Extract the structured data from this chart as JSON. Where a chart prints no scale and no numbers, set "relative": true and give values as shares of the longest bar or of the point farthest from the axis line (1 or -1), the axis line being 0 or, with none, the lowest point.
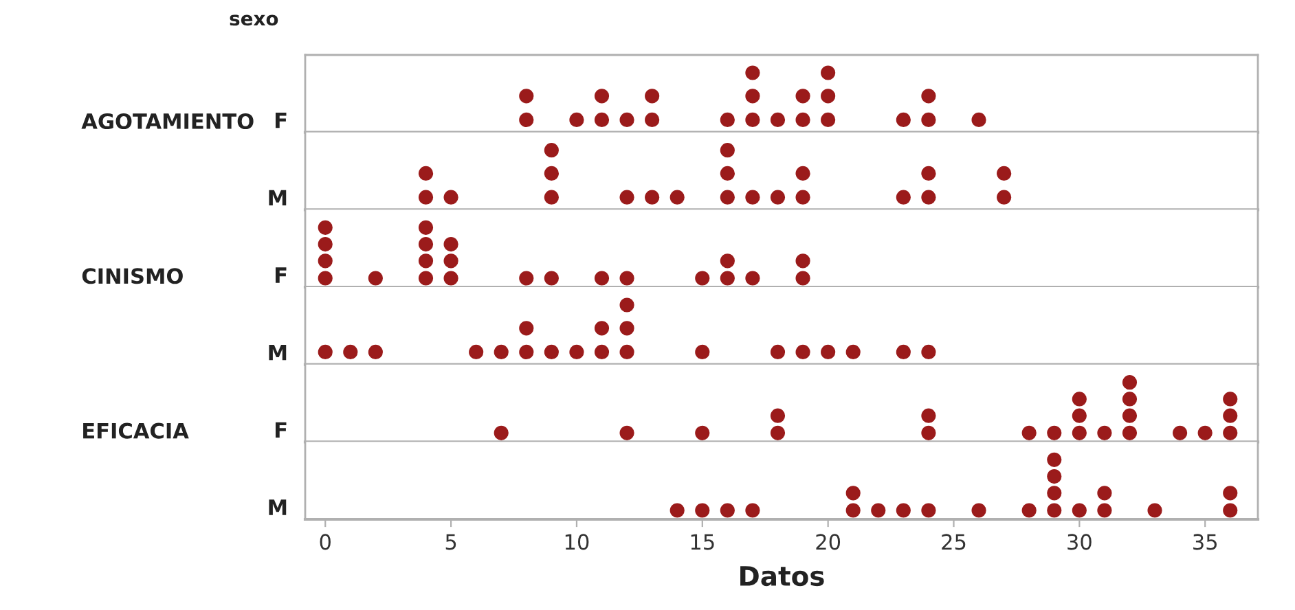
{
  "chart_data": [
    {
      "type": "scatter",
      "relative": true,
      "ylabel": "F",
      "annotations": [
        "sexo",
        "AGOTAMIENTO"
      ],
      "color": "#9b1b1b",
      "marker": "circle",
      "xlim": [
        -0.8,
        37.1
      ],
      "tick_labels": false,
      "x": [
        8,
        8,
        10,
        11,
        11,
        12,
        13,
        13,
        16,
        17,
        17,
        17,
        18,
        19,
        19,
        20,
        20,
        20,
        23,
        24,
        24,
        26
      ],
      "values": [
        0.21,
        0.61,
        0.21,
        0.21,
        0.61,
        0.21,
        0.21,
        0.61,
        0.21,
        0.21,
        0.61,
        1,
        0.21,
        0.21,
        0.61,
        0.21,
        0.61,
        1,
        0.21,
        0.21,
        0.61,
        0.21
      ]
    },
    {
      "type": "scatter",
      "relative": true,
      "ylabel": "M",
      "color": "#9b1b1b",
      "marker": "circle",
      "xlim": [
        -0.8,
        37.1
      ],
      "tick_labels": false,
      "x": [
        4,
        4,
        5,
        9,
        9,
        9,
        12,
        13,
        14,
        16,
        16,
        16,
        17,
        18,
        19,
        19,
        23,
        24,
        24,
        27,
        27
      ],
      "values": [
        0.21,
        0.61,
        0.21,
        0.21,
        0.61,
        1,
        0.21,
        0.21,
        0.21,
        0.21,
        0.61,
        1,
        0.21,
        0.21,
        0.21,
        0.61,
        0.21,
        0.21,
        0.61,
        0.21,
        0.61
      ]
    },
    {
      "type": "scatter",
      "relative": true,
      "ylabel": "F",
      "annotations": [
        "CINISMO"
      ],
      "color": "#9b1b1b",
      "marker": "circle",
      "xlim": [
        -0.8,
        37.1
      ],
      "tick_labels": false,
      "x": [
        0,
        0,
        0,
        0,
        2,
        4,
        4,
        4,
        4,
        5,
        5,
        5,
        8,
        9,
        11,
        12,
        15,
        16,
        16,
        17,
        19,
        19
      ],
      "values": [
        0.15,
        0.44,
        0.72,
        1,
        0.15,
        0.15,
        0.44,
        0.72,
        1,
        0.15,
        0.44,
        0.72,
        0.15,
        0.15,
        0.15,
        0.15,
        0.15,
        0.15,
        0.44,
        0.15,
        0.15,
        0.44
      ]
    },
    {
      "type": "scatter",
      "relative": true,
      "ylabel": "M",
      "color": "#9b1b1b",
      "marker": "circle",
      "xlim": [
        -0.8,
        37.1
      ],
      "tick_labels": false,
      "x": [
        0,
        1,
        2,
        6,
        7,
        8,
        8,
        9,
        10,
        11,
        11,
        12,
        12,
        12,
        15,
        18,
        19,
        20,
        21,
        23,
        24
      ],
      "values": [
        0.21,
        0.21,
        0.21,
        0.21,
        0.21,
        0.21,
        0.61,
        0.21,
        0.21,
        0.21,
        0.61,
        0.21,
        0.61,
        1,
        0.21,
        0.21,
        0.21,
        0.21,
        0.21,
        0.21,
        0.21
      ]
    },
    {
      "type": "scatter",
      "relative": true,
      "ylabel": "F",
      "annotations": [
        "EFICACIA"
      ],
      "color": "#9b1b1b",
      "marker": "circle",
      "xlim": [
        -0.8,
        37.1
      ],
      "tick_labels": false,
      "x": [
        7,
        12,
        15,
        18,
        18,
        24,
        24,
        28,
        29,
        30,
        30,
        30,
        31,
        32,
        32,
        32,
        32,
        34,
        35,
        36,
        36,
        36
      ],
      "values": [
        0.15,
        0.15,
        0.15,
        0.15,
        0.44,
        0.15,
        0.44,
        0.15,
        0.15,
        0.15,
        0.44,
        0.72,
        0.15,
        0.15,
        0.44,
        0.72,
        1,
        0.15,
        0.15,
        0.15,
        0.44,
        0.72
      ]
    },
    {
      "type": "scatter",
      "relative": true,
      "ylabel": "M",
      "xlabel": "Datos",
      "color": "#9b1b1b",
      "marker": "circle",
      "xlim": [
        -0.8,
        37.1
      ],
      "xticks": [
        0,
        5,
        10,
        15,
        20,
        25,
        30,
        35
      ],
      "tick_labels": "x",
      "x": [
        14,
        15,
        16,
        17,
        21,
        21,
        22,
        23,
        24,
        26,
        28,
        29,
        29,
        29,
        29,
        30,
        31,
        31,
        33,
        36,
        36
      ],
      "values": [
        0.15,
        0.15,
        0.15,
        0.15,
        0.15,
        0.44,
        0.15,
        0.15,
        0.15,
        0.15,
        0.15,
        0.15,
        0.44,
        0.72,
        1,
        0.15,
        0.15,
        0.44,
        0.15,
        0.15,
        0.44
      ]
    }
  ]
}
